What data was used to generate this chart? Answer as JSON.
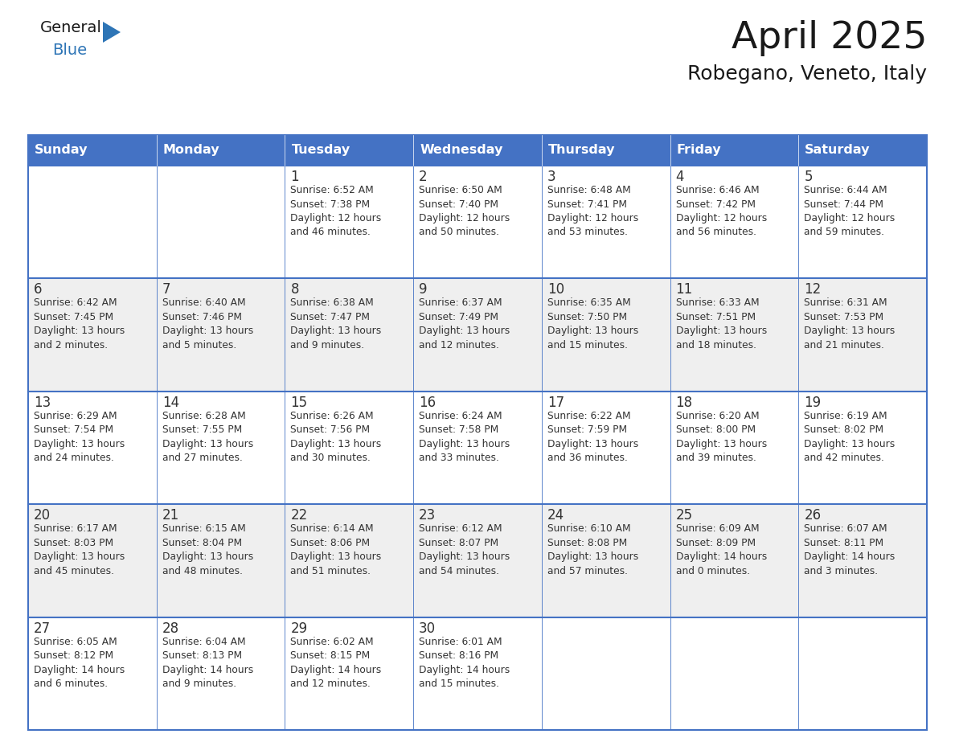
{
  "title": "April 2025",
  "subtitle": "Robegano, Veneto, Italy",
  "header_bg": "#4472C4",
  "header_text_color": "#FFFFFF",
  "header_font_size": 11.5,
  "days_of_week": [
    "Sunday",
    "Monday",
    "Tuesday",
    "Wednesday",
    "Thursday",
    "Friday",
    "Saturday"
  ],
  "title_font_size": 34,
  "subtitle_font_size": 18,
  "cell_text_color": "#333333",
  "cell_number_font_size": 12,
  "cell_info_font_size": 8.8,
  "grid_color": "#4472C4",
  "alt_row_bg": "#EFEFEF",
  "white_row_bg": "#FFFFFF",
  "general_black": "#1a1a1a",
  "general_blue": "#2E75B6",
  "logo_black": "#1a1a1a",
  "fig_width": 11.88,
  "fig_height": 9.18,
  "weeks": [
    [
      {
        "day": "",
        "info": ""
      },
      {
        "day": "",
        "info": ""
      },
      {
        "day": "1",
        "info": "Sunrise: 6:52 AM\nSunset: 7:38 PM\nDaylight: 12 hours\nand 46 minutes."
      },
      {
        "day": "2",
        "info": "Sunrise: 6:50 AM\nSunset: 7:40 PM\nDaylight: 12 hours\nand 50 minutes."
      },
      {
        "day": "3",
        "info": "Sunrise: 6:48 AM\nSunset: 7:41 PM\nDaylight: 12 hours\nand 53 minutes."
      },
      {
        "day": "4",
        "info": "Sunrise: 6:46 AM\nSunset: 7:42 PM\nDaylight: 12 hours\nand 56 minutes."
      },
      {
        "day": "5",
        "info": "Sunrise: 6:44 AM\nSunset: 7:44 PM\nDaylight: 12 hours\nand 59 minutes."
      }
    ],
    [
      {
        "day": "6",
        "info": "Sunrise: 6:42 AM\nSunset: 7:45 PM\nDaylight: 13 hours\nand 2 minutes."
      },
      {
        "day": "7",
        "info": "Sunrise: 6:40 AM\nSunset: 7:46 PM\nDaylight: 13 hours\nand 5 minutes."
      },
      {
        "day": "8",
        "info": "Sunrise: 6:38 AM\nSunset: 7:47 PM\nDaylight: 13 hours\nand 9 minutes."
      },
      {
        "day": "9",
        "info": "Sunrise: 6:37 AM\nSunset: 7:49 PM\nDaylight: 13 hours\nand 12 minutes."
      },
      {
        "day": "10",
        "info": "Sunrise: 6:35 AM\nSunset: 7:50 PM\nDaylight: 13 hours\nand 15 minutes."
      },
      {
        "day": "11",
        "info": "Sunrise: 6:33 AM\nSunset: 7:51 PM\nDaylight: 13 hours\nand 18 minutes."
      },
      {
        "day": "12",
        "info": "Sunrise: 6:31 AM\nSunset: 7:53 PM\nDaylight: 13 hours\nand 21 minutes."
      }
    ],
    [
      {
        "day": "13",
        "info": "Sunrise: 6:29 AM\nSunset: 7:54 PM\nDaylight: 13 hours\nand 24 minutes."
      },
      {
        "day": "14",
        "info": "Sunrise: 6:28 AM\nSunset: 7:55 PM\nDaylight: 13 hours\nand 27 minutes."
      },
      {
        "day": "15",
        "info": "Sunrise: 6:26 AM\nSunset: 7:56 PM\nDaylight: 13 hours\nand 30 minutes."
      },
      {
        "day": "16",
        "info": "Sunrise: 6:24 AM\nSunset: 7:58 PM\nDaylight: 13 hours\nand 33 minutes."
      },
      {
        "day": "17",
        "info": "Sunrise: 6:22 AM\nSunset: 7:59 PM\nDaylight: 13 hours\nand 36 minutes."
      },
      {
        "day": "18",
        "info": "Sunrise: 6:20 AM\nSunset: 8:00 PM\nDaylight: 13 hours\nand 39 minutes."
      },
      {
        "day": "19",
        "info": "Sunrise: 6:19 AM\nSunset: 8:02 PM\nDaylight: 13 hours\nand 42 minutes."
      }
    ],
    [
      {
        "day": "20",
        "info": "Sunrise: 6:17 AM\nSunset: 8:03 PM\nDaylight: 13 hours\nand 45 minutes."
      },
      {
        "day": "21",
        "info": "Sunrise: 6:15 AM\nSunset: 8:04 PM\nDaylight: 13 hours\nand 48 minutes."
      },
      {
        "day": "22",
        "info": "Sunrise: 6:14 AM\nSunset: 8:06 PM\nDaylight: 13 hours\nand 51 minutes."
      },
      {
        "day": "23",
        "info": "Sunrise: 6:12 AM\nSunset: 8:07 PM\nDaylight: 13 hours\nand 54 minutes."
      },
      {
        "day": "24",
        "info": "Sunrise: 6:10 AM\nSunset: 8:08 PM\nDaylight: 13 hours\nand 57 minutes."
      },
      {
        "day": "25",
        "info": "Sunrise: 6:09 AM\nSunset: 8:09 PM\nDaylight: 14 hours\nand 0 minutes."
      },
      {
        "day": "26",
        "info": "Sunrise: 6:07 AM\nSunset: 8:11 PM\nDaylight: 14 hours\nand 3 minutes."
      }
    ],
    [
      {
        "day": "27",
        "info": "Sunrise: 6:05 AM\nSunset: 8:12 PM\nDaylight: 14 hours\nand 6 minutes."
      },
      {
        "day": "28",
        "info": "Sunrise: 6:04 AM\nSunset: 8:13 PM\nDaylight: 14 hours\nand 9 minutes."
      },
      {
        "day": "29",
        "info": "Sunrise: 6:02 AM\nSunset: 8:15 PM\nDaylight: 14 hours\nand 12 minutes."
      },
      {
        "day": "30",
        "info": "Sunrise: 6:01 AM\nSunset: 8:16 PM\nDaylight: 14 hours\nand 15 minutes."
      },
      {
        "day": "",
        "info": ""
      },
      {
        "day": "",
        "info": ""
      },
      {
        "day": "",
        "info": ""
      }
    ]
  ]
}
